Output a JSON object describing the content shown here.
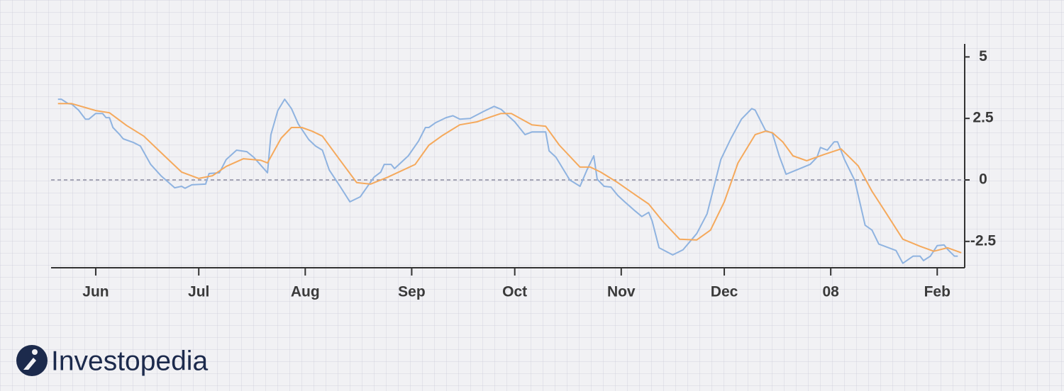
{
  "chart_data": {
    "type": "line",
    "logo_text": "Investopedia",
    "xlim": [
      0,
      266
    ],
    "xticks": [
      {
        "value": 13,
        "label": "Jun"
      },
      {
        "value": 43,
        "label": "Jul"
      },
      {
        "value": 74,
        "label": "Aug"
      },
      {
        "value": 105,
        "label": "Sep"
      },
      {
        "value": 135,
        "label": "Oct"
      },
      {
        "value": 166,
        "label": "Nov"
      },
      {
        "value": 196,
        "label": "Dec"
      },
      {
        "value": 227,
        "label": "08"
      },
      {
        "value": 258,
        "label": "Feb"
      }
    ],
    "ylim": [
      -3.6,
      5.5
    ],
    "yticks": [
      5,
      2.5,
      0,
      -2.5
    ],
    "hline": 0,
    "grid": true,
    "series": [
      {
        "color": "#8fb3e0",
        "x": [
          2,
          3,
          5,
          6,
          8,
          10,
          11,
          13,
          15,
          16,
          17,
          18,
          20,
          21,
          24,
          26,
          29,
          32,
          36,
          38,
          39,
          41,
          45,
          46,
          49,
          51,
          54,
          57,
          59,
          63,
          64,
          66,
          68,
          70,
          72,
          75,
          77,
          79,
          81,
          84,
          87,
          90,
          94,
          96,
          97,
          99,
          100,
          102,
          104,
          107,
          109,
          110,
          112,
          115,
          117,
          119,
          122,
          126,
          129,
          131,
          135,
          138,
          140,
          144,
          145,
          147,
          151,
          154,
          156,
          158,
          159,
          161,
          163,
          165,
          167,
          170,
          172,
          174,
          175,
          177,
          181,
          184,
          188,
          191,
          195,
          198,
          201,
          204,
          205,
          208,
          210,
          212,
          214,
          217,
          221,
          223,
          224,
          226,
          228,
          229,
          231,
          234,
          237,
          239,
          241,
          246,
          248,
          251,
          253,
          254,
          256,
          258,
          260,
          261,
          263,
          264
        ],
        "values": [
          3.28,
          3.28,
          3.1,
          3.08,
          2.84,
          2.47,
          2.47,
          2.7,
          2.7,
          2.53,
          2.53,
          2.13,
          1.84,
          1.67,
          1.52,
          1.38,
          0.63,
          0.17,
          -0.32,
          -0.26,
          -0.34,
          -0.2,
          -0.17,
          0.26,
          0.29,
          0.83,
          1.21,
          1.15,
          0.92,
          0.29,
          1.84,
          2.82,
          3.28,
          2.9,
          2.27,
          1.64,
          1.38,
          1.21,
          0.4,
          -0.23,
          -0.89,
          -0.69,
          0.11,
          0.32,
          0.63,
          0.63,
          0.46,
          0.72,
          0.98,
          1.58,
          2.13,
          2.13,
          2.33,
          2.53,
          2.61,
          2.47,
          2.5,
          2.79,
          2.99,
          2.87,
          2.36,
          1.84,
          1.95,
          1.95,
          1.18,
          0.92,
          0,
          -0.26,
          0.4,
          0.98,
          0.03,
          -0.26,
          -0.29,
          -0.63,
          -0.89,
          -1.26,
          -1.49,
          -1.32,
          -1.67,
          -2.76,
          -3.05,
          -2.84,
          -2.18,
          -1.38,
          0.83,
          1.7,
          2.47,
          2.9,
          2.84,
          2.01,
          1.9,
          0.98,
          0.23,
          0.4,
          0.63,
          0.92,
          1.32,
          1.21,
          1.55,
          1.55,
          0.83,
          -0.03,
          -1.84,
          -2.04,
          -2.61,
          -2.87,
          -3.39,
          -3.1,
          -3.1,
          -3.28,
          -3.1,
          -2.67,
          -2.64,
          -2.82,
          -3.1,
          -3.1
        ]
      },
      {
        "color": "#f5a95c",
        "x": [
          2,
          6,
          13,
          17,
          22,
          27,
          33,
          38,
          43,
          47,
          51,
          56,
          61,
          63,
          67,
          70,
          73,
          76,
          79,
          84,
          89,
          93,
          98,
          106,
          110,
          114,
          119,
          124,
          128,
          131,
          134,
          140,
          144,
          148,
          154,
          157,
          160,
          165,
          170,
          174,
          178,
          183,
          188,
          192,
          196,
          200,
          205,
          208,
          210,
          213,
          216,
          220,
          225,
          230,
          235,
          239,
          243,
          248,
          253,
          257,
          261,
          265
        ],
        "values": [
          3.1,
          3.1,
          2.82,
          2.73,
          2.21,
          1.78,
          0.98,
          0.32,
          0.06,
          0.17,
          0.55,
          0.86,
          0.8,
          0.69,
          1.7,
          2.13,
          2.13,
          1.98,
          1.78,
          0.83,
          -0.11,
          -0.17,
          0.11,
          0.63,
          1.41,
          1.81,
          2.24,
          2.36,
          2.56,
          2.7,
          2.7,
          2.24,
          2.18,
          1.41,
          0.52,
          0.52,
          0.32,
          -0.11,
          -0.6,
          -0.98,
          -1.67,
          -2.41,
          -2.44,
          -2.04,
          -0.89,
          0.69,
          1.84,
          1.98,
          1.92,
          1.55,
          0.98,
          0.78,
          1.03,
          1.26,
          0.57,
          -0.46,
          -1.32,
          -2.41,
          -2.7,
          -2.9,
          -2.76,
          -2.96
        ]
      }
    ]
  }
}
